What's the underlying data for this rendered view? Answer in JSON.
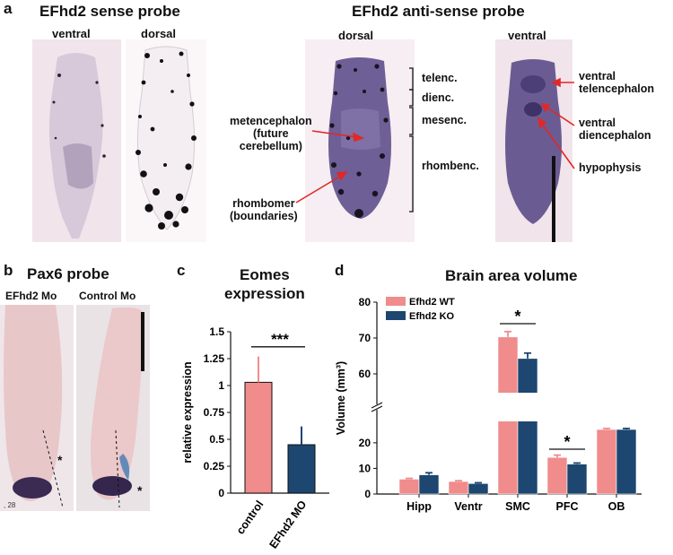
{
  "figure": {
    "panel_a": {
      "letter": "a",
      "sense_title": "EFhd2 sense probe",
      "antisense_title": "EFhd2 anti-sense probe",
      "views": [
        "ventral",
        "dorsal",
        "dorsal",
        "ventral"
      ],
      "regions": [
        "telenc.",
        "dienc.",
        "mesenc.",
        "rhombenc."
      ],
      "annotations": {
        "metencephalon": [
          "metencephalon",
          "(future",
          "cerebellum)"
        ],
        "rhombomer": [
          "rhombomer",
          "(boundaries)"
        ],
        "ventral_telencephalon": [
          "ventral",
          "telencephalon"
        ],
        "ventral_diencephalon": [
          "ventral",
          "diencephalon"
        ],
        "hypophysis": [
          "hypophysis"
        ]
      }
    },
    "panel_b": {
      "letter": "b",
      "title": "Pax6 probe",
      "left_label": "EFhd2 Mo",
      "right_label": "Control  Mo",
      "asterisk": "*",
      "corner_number": ", 28"
    },
    "panel_c": {
      "letter": "c",
      "title_lines": [
        "Eomes",
        "expression"
      ],
      "significance": "***"
    },
    "panel_d": {
      "letter": "d",
      "title": "Brain area volume",
      "significance": "*"
    }
  },
  "chart_data": [
    {
      "type": "bar",
      "title": "Eomes expression",
      "ylabel": "relative expression",
      "xlabel": "",
      "categories": [
        "control",
        "EFhd2 MO"
      ],
      "values": [
        1.03,
        0.45
      ],
      "errors": [
        0.24,
        0.17
      ],
      "colors": [
        "#f08c8c",
        "#1d4670"
      ],
      "ylim": [
        0,
        1.5
      ],
      "yticks": [
        "0",
        "0.25",
        "0.5",
        "0.75",
        "1",
        "1.25",
        "1.5"
      ],
      "annotations": [
        "***"
      ],
      "grid": false
    },
    {
      "type": "bar",
      "title": "Brain area volume",
      "ylabel": "Volume (mm³)",
      "xlabel": "",
      "categories": [
        "Hipp",
        "Ventr",
        "SMC",
        "PFC",
        "OB"
      ],
      "series": [
        {
          "name": "Efhd2 WT",
          "values": [
            5.8,
            4.9,
            70.3,
            14.3,
            25.2
          ],
          "errors": [
            0.3,
            0.3,
            1.5,
            0.9,
            0.4
          ],
          "color": "#f08c8c"
        },
        {
          "name": "Efhd2 KO",
          "values": [
            7.5,
            4.1,
            64.3,
            11.7,
            25.2
          ],
          "errors": [
            0.8,
            0.3,
            1.5,
            0.4,
            0.4
          ],
          "color": "#1d4670"
        }
      ],
      "yaxis_break": [
        28,
        55
      ],
      "yticks_lower": [
        "0",
        "10",
        "20"
      ],
      "yticks_upper": [
        "60",
        "70",
        "80"
      ],
      "annotations": [
        "*",
        "*"
      ],
      "legend": "top-left",
      "grid": false
    }
  ]
}
